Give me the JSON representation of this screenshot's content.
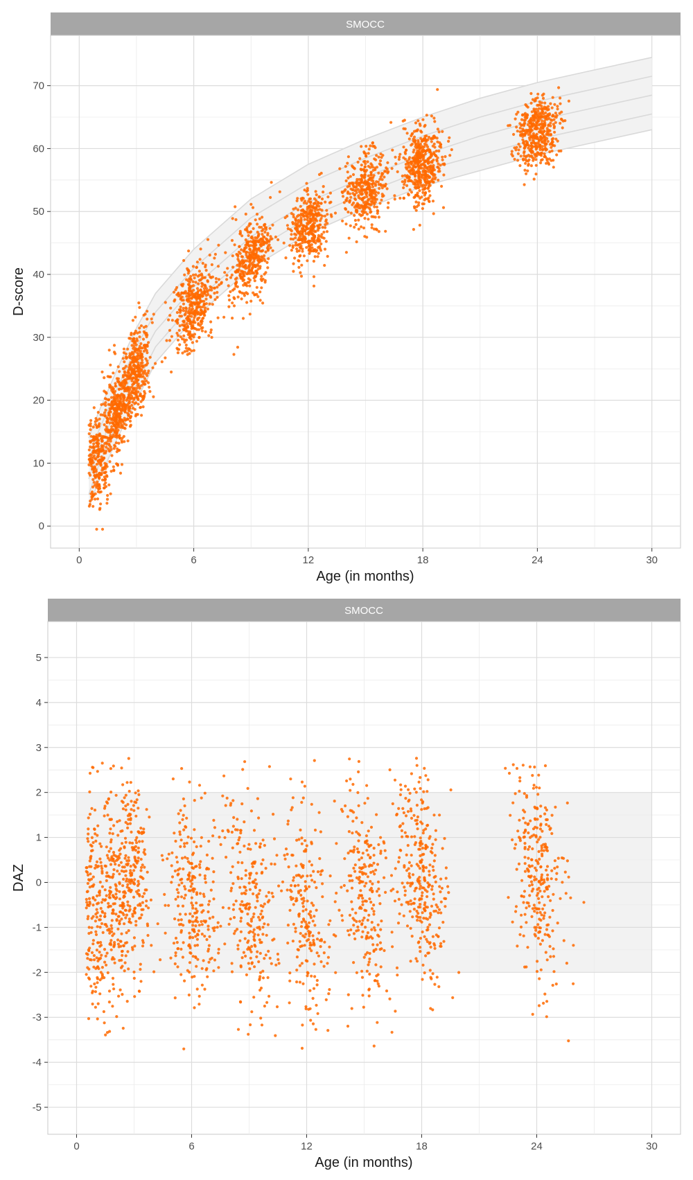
{
  "chart_data": [
    {
      "type": "scatter",
      "panel_label": "SMOCC",
      "xlabel": "Age (in months)",
      "ylabel": "D-score",
      "xlim": [
        -1.5,
        31.5
      ],
      "ylim": [
        -3.5,
        78
      ],
      "x_ticks": [
        0,
        6,
        12,
        18,
        24,
        30
      ],
      "y_ticks": [
        0,
        10,
        20,
        30,
        40,
        50,
        60,
        70
      ],
      "x_tick_labels": [
        "0",
        "6",
        "12",
        "18",
        "24",
        "30"
      ],
      "y_tick_labels": [
        "0",
        "10",
        "20",
        "30",
        "40",
        "50",
        "60",
        "70"
      ],
      "grid": true,
      "point_color": "#FF6A00",
      "reference_band_color": "#F2F2F2",
      "reference_line_color": "#D9D9D9",
      "reference_centiles": [
        {
          "x": [
            0.5,
            1,
            2,
            3,
            4,
            6,
            9,
            12,
            15,
            18,
            21,
            24,
            27,
            30
          ],
          "y": [
            3,
            7,
            14,
            20,
            26,
            33,
            41,
            46.5,
            50.5,
            54,
            56.5,
            59,
            61,
            63
          ]
        },
        {
          "x": [
            0.5,
            1,
            2,
            3,
            4,
            6,
            9,
            12,
            15,
            18,
            21,
            24,
            27,
            30
          ],
          "y": [
            5,
            9.5,
            16.5,
            22.5,
            28.5,
            35.5,
            43.5,
            49,
            53,
            56.5,
            59,
            61.5,
            63.5,
            65.5
          ]
        },
        {
          "x": [
            0.5,
            1,
            2,
            3,
            4,
            6,
            9,
            12,
            15,
            18,
            21,
            24,
            27,
            30
          ],
          "y": [
            7.5,
            12,
            19,
            25.5,
            31,
            38,
            46,
            51.5,
            55.5,
            59,
            62,
            64.5,
            66.5,
            68.5
          ]
        },
        {
          "x": [
            0.5,
            1,
            2,
            3,
            4,
            6,
            9,
            12,
            15,
            18,
            21,
            24,
            27,
            30
          ],
          "y": [
            10.5,
            15,
            22,
            28.5,
            34,
            41,
            49,
            54.5,
            58.5,
            62,
            65,
            67.5,
            69.5,
            71.5
          ]
        },
        {
          "x": [
            0.5,
            1,
            2,
            3,
            4,
            6,
            9,
            12,
            15,
            18,
            21,
            24,
            27,
            30
          ],
          "y": [
            14,
            18,
            25,
            31.5,
            37,
            44,
            52,
            57.5,
            61.5,
            65,
            68,
            70.5,
            72.5,
            74.5
          ]
        }
      ],
      "point_clusters": [
        {
          "age": 1,
          "d_mean": 11,
          "d_sd": 4,
          "n": 260
        },
        {
          "age": 2,
          "d_mean": 18.5,
          "d_sd": 3.6,
          "n": 340
        },
        {
          "age": 3,
          "d_mean": 25,
          "d_sd": 3.6,
          "n": 340
        },
        {
          "age": 6,
          "d_mean": 35,
          "d_sd": 3.2,
          "n": 400
        },
        {
          "age": 9,
          "d_mean": 42.5,
          "d_sd": 3.2,
          "n": 380
        },
        {
          "age": 12,
          "d_mean": 47.5,
          "d_sd": 3,
          "n": 360
        },
        {
          "age": 15,
          "d_mean": 53.5,
          "d_sd": 3,
          "n": 360
        },
        {
          "age": 18,
          "d_mean": 57.5,
          "d_sd": 3,
          "n": 460
        },
        {
          "age": 24,
          "d_mean": 62.5,
          "d_sd": 2.6,
          "n": 440
        }
      ]
    },
    {
      "type": "scatter",
      "panel_label": "SMOCC",
      "xlabel": "Age (in months)",
      "ylabel": "DAZ",
      "xlim": [
        -1.5,
        31.5
      ],
      "ylim": [
        -5.6,
        5.8
      ],
      "x_ticks": [
        0,
        6,
        12,
        18,
        24,
        30
      ],
      "y_ticks": [
        -5,
        -4,
        -3,
        -2,
        -1,
        0,
        1,
        2,
        3,
        4,
        5
      ],
      "x_tick_labels": [
        "0",
        "6",
        "12",
        "18",
        "24",
        "30"
      ],
      "y_tick_labels": [
        "-5",
        "-4",
        "-3",
        "-2",
        "-1",
        "0",
        "1",
        "2",
        "3",
        "4",
        "5"
      ],
      "grid": true,
      "point_color": "#FF6A00",
      "reference_band": {
        "x": [
          0,
          30
        ],
        "y": [
          -2,
          2
        ],
        "color": "#F2F2F2"
      },
      "point_clusters": [
        {
          "age": 1,
          "daz_mean": -0.6,
          "daz_sd": 1.2,
          "n": 180
        },
        {
          "age": 2,
          "daz_mean": -0.4,
          "daz_sd": 1.1,
          "n": 200
        },
        {
          "age": 3,
          "daz_mean": 0.2,
          "daz_sd": 1.1,
          "n": 200
        },
        {
          "age": 6,
          "daz_mean": -0.4,
          "daz_sd": 1.1,
          "n": 260
        },
        {
          "age": 9,
          "daz_mean": -0.5,
          "daz_sd": 1.1,
          "n": 240
        },
        {
          "age": 12,
          "daz_mean": -0.6,
          "daz_sd": 1.1,
          "n": 220
        },
        {
          "age": 15,
          "daz_mean": -0.2,
          "daz_sd": 1.2,
          "n": 240
        },
        {
          "age": 18,
          "daz_mean": 0.1,
          "daz_sd": 1.1,
          "n": 300
        },
        {
          "age": 24,
          "daz_mean": 0.2,
          "daz_sd": 1.1,
          "n": 280
        }
      ]
    }
  ]
}
